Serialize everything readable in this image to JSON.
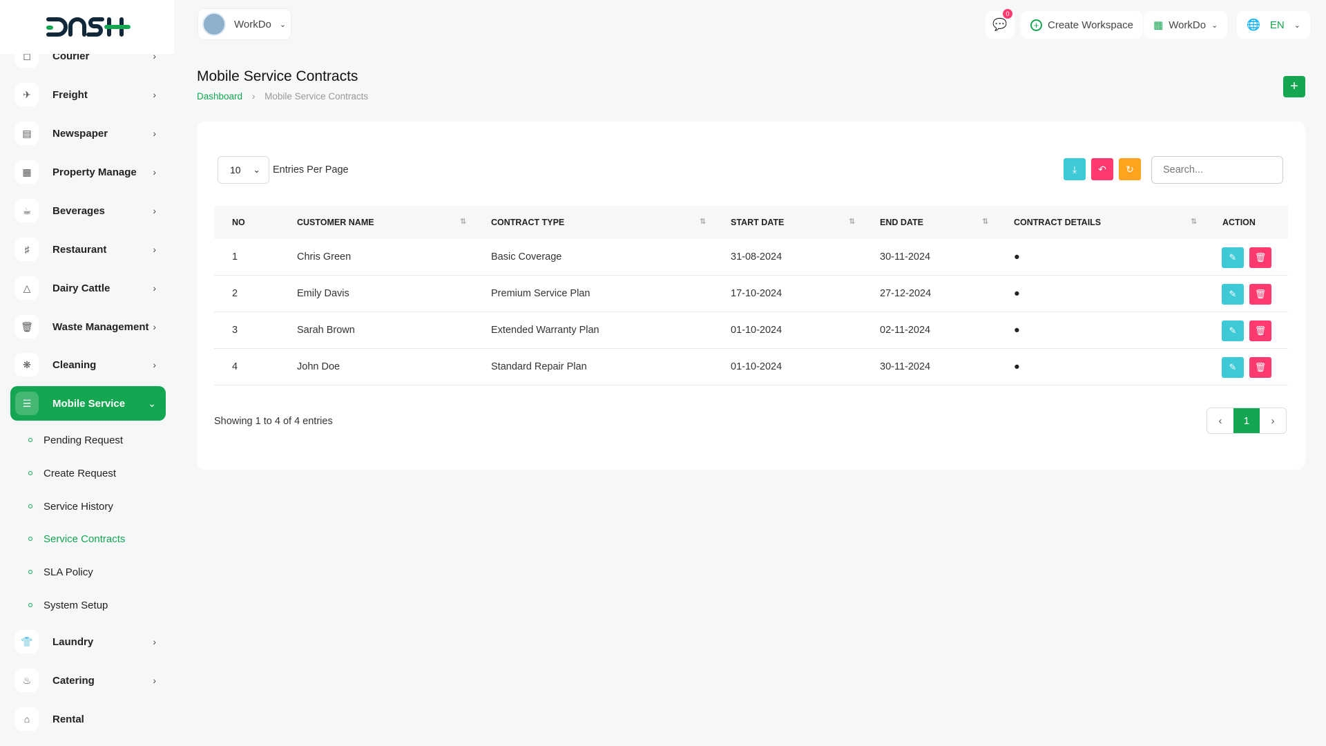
{
  "brand": {
    "logo_text": "DASH",
    "accent": "#14a651"
  },
  "header": {
    "workspace": "WorkDo",
    "notifications_count": "0",
    "create_workspace": "Create Workspace",
    "workspace_menu": "WorkDo",
    "language": "EN"
  },
  "sidebar": {
    "items": [
      {
        "label": "Courier",
        "icon": "box-icon"
      },
      {
        "label": "Freight",
        "icon": "plane-icon"
      },
      {
        "label": "Newspaper",
        "icon": "newspaper-icon"
      },
      {
        "label": "Property Manage",
        "icon": "building-icon"
      },
      {
        "label": "Beverages",
        "icon": "glass-icon"
      },
      {
        "label": "Restaurant",
        "icon": "utensils-icon"
      },
      {
        "label": "Dairy Cattle",
        "icon": "bottle-icon"
      },
      {
        "label": "Waste Management",
        "icon": "trash-icon"
      },
      {
        "label": "Cleaning",
        "icon": "sparkle-icon"
      },
      {
        "label": "Mobile Service",
        "icon": "menu-icon",
        "active": true
      }
    ],
    "subitems": [
      {
        "label": "Pending Request"
      },
      {
        "label": "Create Request"
      },
      {
        "label": "Service History"
      },
      {
        "label": "Service Contracts",
        "active": true
      },
      {
        "label": "SLA Policy"
      },
      {
        "label": "System Setup"
      }
    ],
    "bottom": [
      {
        "label": "Laundry"
      },
      {
        "label": "Catering"
      },
      {
        "label": "Rental"
      }
    ]
  },
  "page": {
    "title": "Mobile Service Contracts",
    "breadcrumb": [
      "Dashboard",
      "Mobile Service Contracts"
    ]
  },
  "table": {
    "entries": "10",
    "entries_label": "Entries Per Page",
    "search_placeholder": "Search...",
    "columns": [
      "NO",
      "CUSTOMER NAME",
      "CONTRACT TYPE",
      "START DATE",
      "END DATE",
      "CONTRACT DETAILS",
      "ACTION"
    ],
    "rows": [
      {
        "no": "1",
        "name": "Chris Green",
        "type": "Basic Coverage",
        "start": "31-08-2024",
        "end": "30-11-2024"
      },
      {
        "no": "2",
        "name": "Emily Davis",
        "type": "Premium Service Plan",
        "start": "17-10-2024",
        "end": "27-12-2024"
      },
      {
        "no": "3",
        "name": "Sarah Brown",
        "type": "Extended Warranty Plan",
        "start": "01-10-2024",
        "end": "02-11-2024"
      },
      {
        "no": "4",
        "name": "John Doe",
        "type": "Standard Repair Plan",
        "start": "01-10-2024",
        "end": "30-11-2024"
      }
    ],
    "showing": "Showing 1 to 4 of 4 entries",
    "page": "1"
  }
}
